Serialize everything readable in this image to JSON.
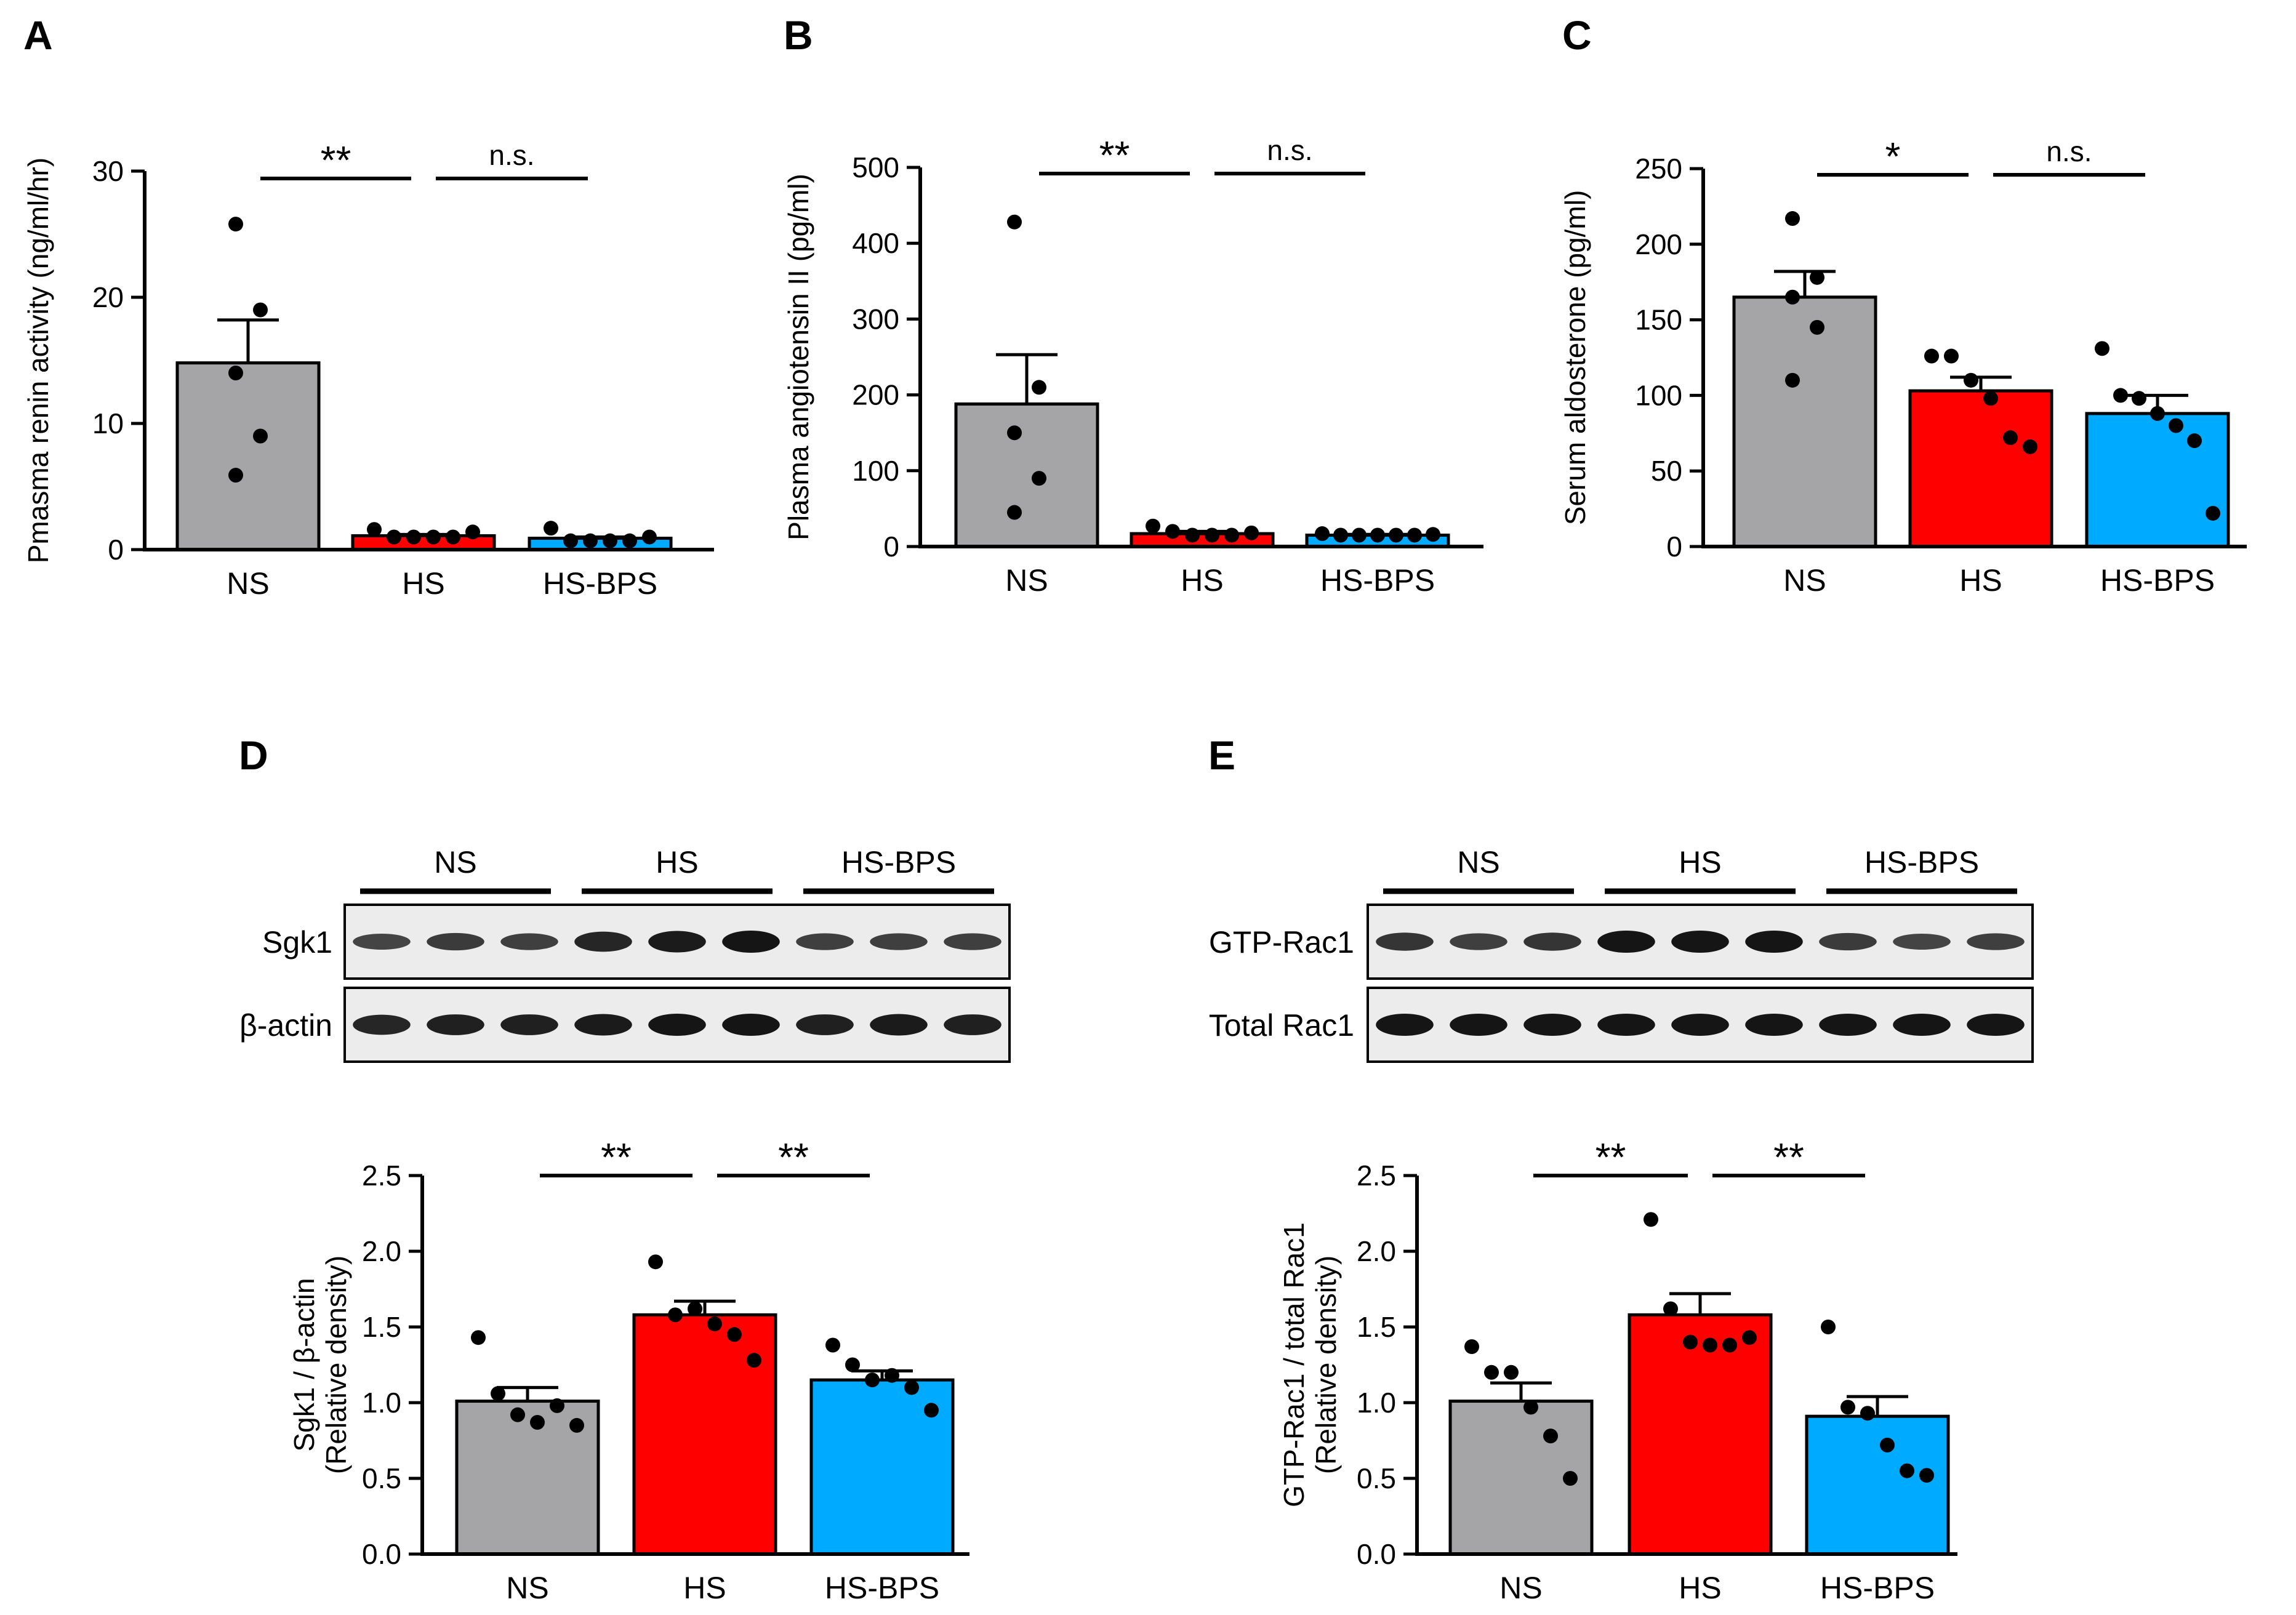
{
  "colors": {
    "NS": "#a5a5a7",
    "HS": "#ff0000",
    "HS-BPS": "#00aaff",
    "axis": "#000000"
  },
  "chart_data": [
    {
      "panel": "A",
      "type": "bar",
      "ylabel": "Pmasma renin activity (ng/ml/hr)",
      "categories": [
        "NS",
        "HS",
        "HS-BPS"
      ],
      "values": [
        14.8,
        1.1,
        0.9
      ],
      "sem": [
        3.4,
        0.1,
        0.1
      ],
      "points": [
        [
          25.8,
          19.0,
          14.0,
          9.0,
          5.9
        ],
        [
          1.6,
          1.0,
          1.0,
          1.0,
          1.0,
          1.4
        ],
        [
          1.7,
          0.7,
          0.7,
          0.7,
          0.7,
          1.0
        ]
      ],
      "ylim": [
        0,
        30
      ],
      "yticks": [
        0,
        10,
        20,
        30
      ],
      "ytick_labels": [
        "0",
        "10",
        "20",
        "30"
      ],
      "significance": [
        {
          "from": 0,
          "to": 1,
          "label": "**"
        },
        {
          "from": 1,
          "to": 2,
          "label": "n.s."
        }
      ]
    },
    {
      "panel": "B",
      "type": "bar",
      "ylabel": "Plasma angiotensin II (pg/ml)",
      "categories": [
        "NS",
        "HS",
        "HS-BPS"
      ],
      "values": [
        188,
        17,
        15
      ],
      "sem": [
        65,
        3,
        1
      ],
      "points": [
        [
          428,
          210,
          150,
          90,
          45
        ],
        [
          27,
          20,
          15,
          15,
          15,
          18
        ],
        [
          17,
          15,
          15,
          15,
          15,
          15,
          16
        ]
      ],
      "ylim": [
        0,
        500
      ],
      "yticks": [
        0,
        100,
        200,
        300,
        400,
        500
      ],
      "ytick_labels": [
        "0",
        "100",
        "200",
        "300",
        "400",
        "500"
      ],
      "significance": [
        {
          "from": 0,
          "to": 1,
          "label": "**"
        },
        {
          "from": 1,
          "to": 2,
          "label": "n.s."
        }
      ]
    },
    {
      "panel": "C",
      "type": "bar",
      "ylabel": "Serum aldosterone (pg/ml)",
      "categories": [
        "NS",
        "HS",
        "HS-BPS"
      ],
      "values": [
        165,
        103,
        88
      ],
      "sem": [
        17,
        9,
        12
      ],
      "points": [
        [
          217,
          178,
          165,
          145,
          110
        ],
        [
          126,
          126,
          110,
          98,
          72,
          66
        ],
        [
          131,
          100,
          98,
          88,
          80,
          70,
          22
        ]
      ],
      "ylim": [
        0,
        250
      ],
      "yticks": [
        0,
        50,
        100,
        150,
        200,
        250
      ],
      "ytick_labels": [
        "0",
        "50",
        "100",
        "150",
        "200",
        "250"
      ],
      "significance": [
        {
          "from": 0,
          "to": 1,
          "label": "*"
        },
        {
          "from": 1,
          "to": 2,
          "label": "n.s."
        }
      ]
    },
    {
      "panel": "D",
      "type": "bar",
      "ylabel_lines": [
        "Sgk1 / β-actin",
        "(Relative density)"
      ],
      "categories": [
        "NS",
        "HS",
        "HS-BPS"
      ],
      "values": [
        1.01,
        1.58,
        1.15
      ],
      "sem": [
        0.09,
        0.09,
        0.06
      ],
      "points": [
        [
          1.43,
          1.06,
          0.92,
          0.87,
          0.98,
          0.85
        ],
        [
          1.93,
          1.58,
          1.62,
          1.52,
          1.45,
          1.28
        ],
        [
          1.38,
          1.25,
          1.15,
          1.18,
          1.1,
          0.95
        ]
      ],
      "ylim": [
        0,
        2.5
      ],
      "yticks": [
        0,
        0.5,
        1.0,
        1.5,
        2.0,
        2.5
      ],
      "ytick_labels": [
        "0.0",
        "0.5",
        "1.0",
        "1.5",
        "2.0",
        "2.5"
      ],
      "significance": [
        {
          "from": 0,
          "to": 1,
          "label": "**"
        },
        {
          "from": 1,
          "to": 2,
          "label": "**"
        }
      ]
    },
    {
      "panel": "E",
      "type": "bar",
      "ylabel_lines": [
        "GTP-Rac1 / total Rac1",
        "(Relative density)"
      ],
      "categories": [
        "NS",
        "HS",
        "HS-BPS"
      ],
      "values": [
        1.01,
        1.58,
        0.91
      ],
      "sem": [
        0.12,
        0.14,
        0.13
      ],
      "points": [
        [
          1.37,
          1.2,
          1.2,
          0.97,
          0.78,
          0.5
        ],
        [
          2.21,
          1.62,
          1.4,
          1.38,
          1.38,
          1.43
        ],
        [
          1.5,
          0.97,
          0.93,
          0.72,
          0.55,
          0.52
        ]
      ],
      "ylim": [
        0,
        2.5
      ],
      "yticks": [
        0,
        0.5,
        1.0,
        1.5,
        2.0,
        2.5
      ],
      "ytick_labels": [
        "0.0",
        "0.5",
        "1.0",
        "1.5",
        "2.0",
        "2.5"
      ],
      "significance": [
        {
          "from": 0,
          "to": 1,
          "label": "**"
        },
        {
          "from": 1,
          "to": 2,
          "label": "**"
        }
      ]
    }
  ],
  "blots": [
    {
      "panel": "D",
      "groups": [
        "NS",
        "HS",
        "HS-BPS"
      ],
      "rows": [
        {
          "label": "Sgk1",
          "intensity": [
            0.55,
            0.65,
            0.6,
            0.85,
            0.95,
            1.0,
            0.6,
            0.6,
            0.6
          ]
        },
        {
          "label": "β-actin",
          "intensity": [
            0.85,
            0.9,
            0.9,
            0.95,
            1.0,
            1.0,
            0.9,
            0.95,
            0.9
          ]
        }
      ]
    },
    {
      "panel": "E",
      "groups": [
        "NS",
        "HS",
        "HS-BPS"
      ],
      "rows": [
        {
          "label": "GTP-Rac1",
          "intensity": [
            0.7,
            0.6,
            0.7,
            1.0,
            1.0,
            1.0,
            0.65,
            0.55,
            0.6
          ]
        },
        {
          "label": "Total Rac1",
          "intensity": [
            1.0,
            1.0,
            1.0,
            1.0,
            1.0,
            1.0,
            1.0,
            1.0,
            1.0
          ]
        }
      ]
    }
  ]
}
